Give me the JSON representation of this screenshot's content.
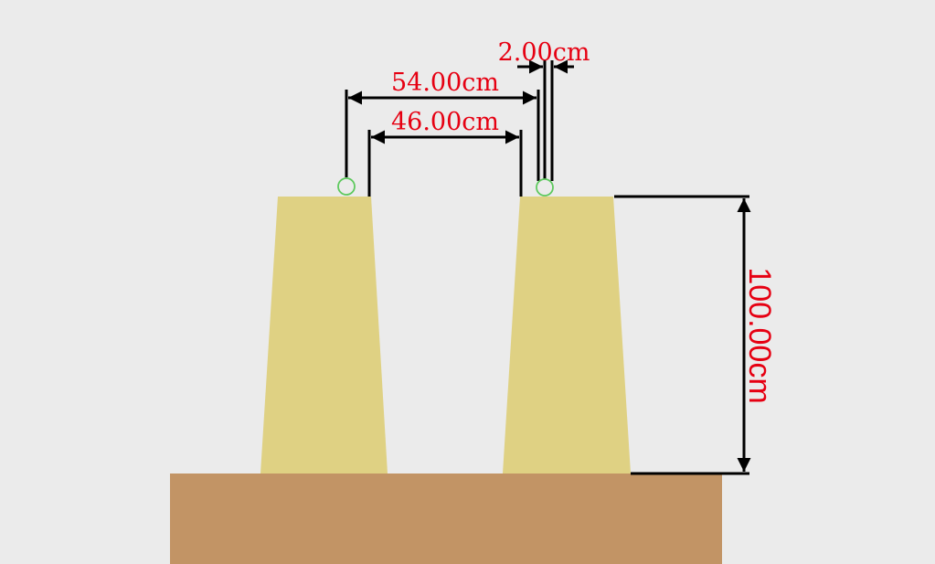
{
  "colors": {
    "background": "#ebebeb",
    "ground": "#c29465",
    "pillar": "#dfd183",
    "dimension_line": "#000000",
    "dimension_text": "#e60012",
    "marker": "#5ec95e"
  },
  "dimensions": {
    "outer_span": "54.00cm",
    "inner_gap": "46.00cm",
    "small_offset": "2.00cm",
    "height": "100.00cm"
  }
}
